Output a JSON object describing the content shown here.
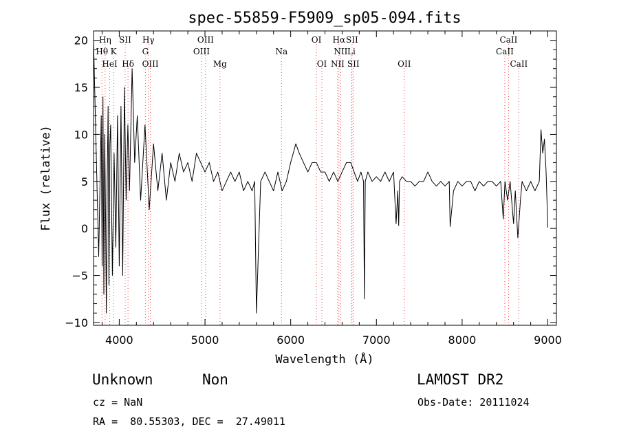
{
  "chart_data": {
    "type": "line",
    "title": "spec-55859-F5909_sp05-094.fits",
    "xlabel": "Wavelength (Å)",
    "ylabel": "Flux (relative)",
    "xlim": [
      3700,
      9100
    ],
    "ylim": [
      -10.3,
      21
    ],
    "xticks": [
      4000,
      5000,
      6000,
      7000,
      8000,
      9000
    ],
    "yticks": [
      -10,
      -5,
      0,
      5,
      10,
      15,
      20
    ],
    "grid": false,
    "line_color": "#000000",
    "line_marker_color": "#ff4040",
    "series": [
      {
        "x": [
          3700,
          3760,
          3790,
          3800,
          3810,
          3820,
          3830,
          3840,
          3850,
          3860,
          3870,
          3880,
          3890,
          3900,
          3920,
          3940,
          3960,
          3980,
          4000,
          4020,
          4040,
          4060,
          4080,
          4100,
          4120,
          4150,
          4180,
          4210,
          4250,
          4300,
          4350,
          4400,
          4450,
          4500,
          4550,
          4600,
          4650,
          4700,
          4750,
          4800,
          4850,
          4900,
          4950,
          5000,
          5050,
          5100,
          5150,
          5200,
          5250,
          5300,
          5350,
          5400,
          5450,
          5500,
          5550,
          5580,
          5600,
          5650,
          5700,
          5750,
          5800,
          5850,
          5900,
          5950,
          6000,
          6030,
          6060,
          6100,
          6150,
          6200,
          6250,
          6300,
          6350,
          6400,
          6450,
          6500,
          6550,
          6600,
          6650,
          6700,
          6740,
          6780,
          6820,
          6850,
          6860,
          6870,
          6900,
          6950,
          7000,
          7050,
          7100,
          7150,
          7200,
          7230,
          7250,
          7260,
          7270,
          7300,
          7350,
          7400,
          7450,
          7500,
          7550,
          7600,
          7650,
          7700,
          7750,
          7800,
          7850,
          7860,
          7900,
          7950,
          8000,
          8050,
          8100,
          8150,
          8200,
          8250,
          8300,
          8350,
          8400,
          8450,
          8480,
          8500,
          8530,
          8560,
          8600,
          8620,
          8650,
          8680,
          8700,
          8750,
          8800,
          8850,
          8900,
          8920,
          8940,
          8960,
          8980,
          9000
        ],
        "y": [
          20,
          -3,
          12,
          -4,
          14,
          -7,
          10,
          2,
          -9,
          5,
          13,
          -6,
          9,
          11,
          -5,
          8,
          -2,
          12,
          -4,
          13,
          -5,
          15,
          3,
          11,
          4,
          17,
          7,
          12,
          3,
          11,
          2,
          9,
          4,
          8,
          3,
          7,
          5,
          8,
          6,
          7,
          5,
          8,
          7,
          6,
          7,
          5,
          6,
          4,
          5,
          6,
          5,
          6,
          4,
          5,
          4,
          5,
          -9,
          5,
          6,
          5,
          4,
          6,
          4,
          5,
          7,
          8,
          9,
          8,
          7,
          6,
          7,
          7,
          6,
          6,
          5,
          6,
          5,
          6,
          7,
          7,
          6,
          5,
          6,
          5,
          -7.5,
          5,
          6,
          5,
          5.5,
          5,
          6,
          5,
          6,
          0.5,
          4,
          0.3,
          5,
          5.5,
          5,
          5,
          4.5,
          5,
          5,
          6,
          5,
          4.5,
          5,
          4.5,
          5,
          0.2,
          4,
          5,
          4.5,
          5,
          5,
          4,
          5,
          4.5,
          5,
          5,
          4.5,
          5,
          1,
          5,
          3,
          5,
          0.5,
          4,
          -1,
          3,
          5,
          4,
          5,
          4,
          5,
          10.5,
          8,
          9.5,
          6,
          0.1
        ]
      }
    ],
    "lines": [
      {
        "label": "Hη",
        "x": 3835,
        "row": 1
      },
      {
        "label": "Hθ",
        "x": 3798,
        "row": 2
      },
      {
        "label": "K",
        "x": 3934,
        "row": 2
      },
      {
        "label": "HeI",
        "x": 3889,
        "row": 3
      },
      {
        "label": "SII",
        "x": 4069,
        "row": 1
      },
      {
        "label": "Hδ",
        "x": 4102,
        "row": 3
      },
      {
        "label": "Hγ",
        "x": 4340,
        "row": 1
      },
      {
        "label": "G",
        "x": 4305,
        "row": 2
      },
      {
        "label": "OIII",
        "x": 4363,
        "row": 3
      },
      {
        "label": "OIII",
        "x": 5007,
        "row": 1
      },
      {
        "label": "OIII",
        "x": 4959,
        "row": 2
      },
      {
        "label": "Mg",
        "x": 5175,
        "row": 3
      },
      {
        "label": "Na",
        "x": 5893,
        "row": 2
      },
      {
        "label": "OI",
        "x": 6300,
        "row": 1
      },
      {
        "label": "OI",
        "x": 6364,
        "row": 3
      },
      {
        "label": "Hα",
        "x": 6563,
        "row": 1
      },
      {
        "label": "SII",
        "x": 6716,
        "row": 1
      },
      {
        "label": "NII",
        "x": 6584,
        "row": 2
      },
      {
        "label": "Li",
        "x": 6708,
        "row": 2
      },
      {
        "label": "NII",
        "x": 6548,
        "row": 3
      },
      {
        "label": "SII",
        "x": 6731,
        "row": 3
      },
      {
        "label": "OII",
        "x": 7325,
        "row": 3
      },
      {
        "label": "CaII",
        "x": 8542,
        "row": 1
      },
      {
        "label": "CaII",
        "x": 8498,
        "row": 2
      },
      {
        "label": "CaII",
        "x": 8662,
        "row": 3
      }
    ]
  },
  "info": {
    "class_label": "Unknown",
    "subclass_label": "Non",
    "survey_label": "LAMOST DR2",
    "cz_text": "cz = NaN",
    "obsdate_text": "Obs-Date: 20111024",
    "radec_text": "RA =  80.55303, DEC =  27.49011"
  }
}
